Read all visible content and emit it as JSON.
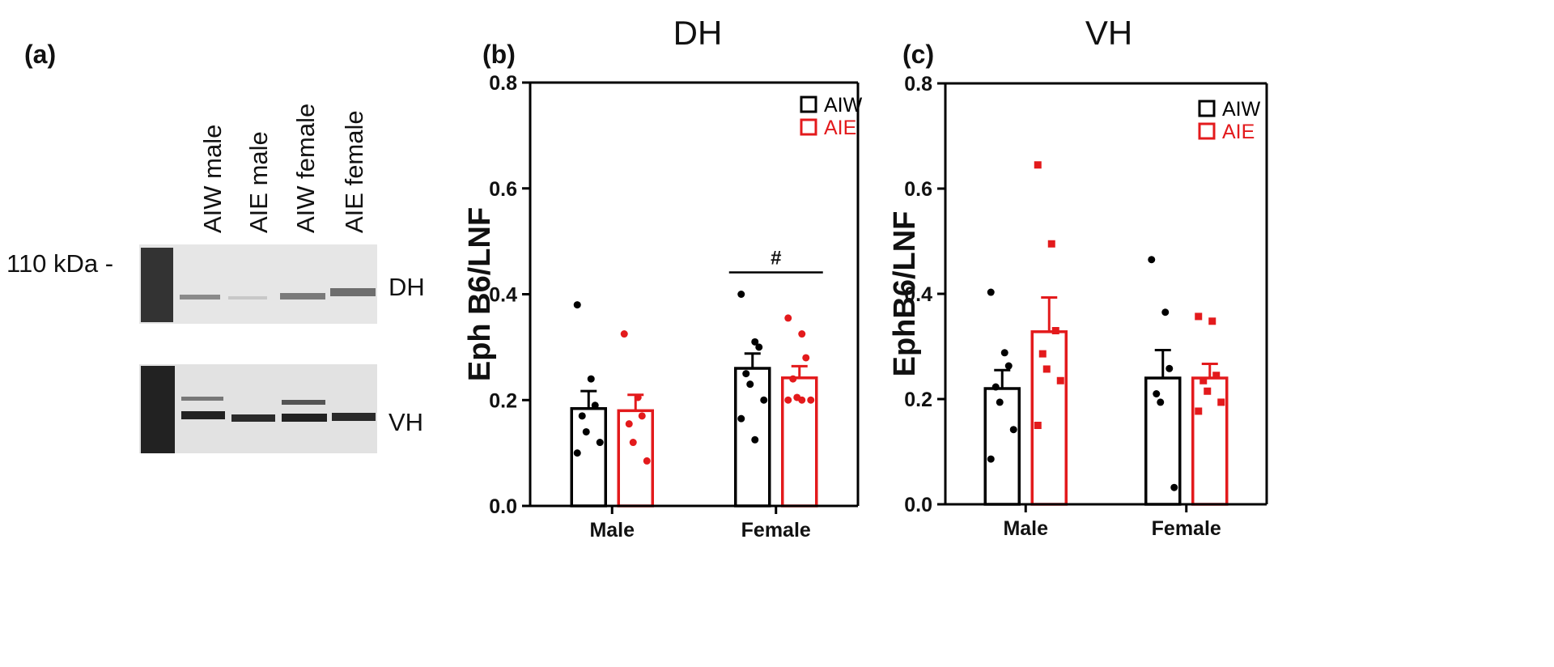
{
  "blot": {
    "panel_label": "(a)",
    "lanes": [
      "AIW male",
      "AIE male",
      "AIW female",
      "AIE female"
    ],
    "marker": "110 kDa -",
    "rows": [
      "DH",
      "VH"
    ]
  },
  "chart_data": [
    {
      "type": "bar",
      "panel_label": "(b)",
      "title": "DH",
      "y_label": "Eph B6/LNF",
      "categories": [
        "Male",
        "Female"
      ],
      "series": [
        {
          "name": "AIW",
          "color": "#000000",
          "marker": "circle",
          "values": [
            0.184,
            0.26
          ],
          "errors": [
            0.033,
            0.028
          ],
          "points": [
            [
              0.38,
              0.24,
              0.19,
              0.17,
              0.14,
              0.12,
              0.1
            ],
            [
              0.4,
              0.31,
              0.3,
              0.25,
              0.23,
              0.2,
              0.165,
              0.125
            ]
          ]
        },
        {
          "name": "AIE",
          "color": "#e31a1c",
          "marker": "circle",
          "values": [
            0.18,
            0.242
          ],
          "errors": [
            0.03,
            0.022
          ],
          "points": [
            [
              0.325,
              0.205,
              0.17,
              0.155,
              0.12,
              0.085
            ],
            [
              0.355,
              0.325,
              0.28,
              0.24,
              0.205,
              0.2,
              0.2,
              0.2
            ]
          ]
        }
      ],
      "annotation": {
        "text": "#",
        "category": 1
      },
      "ylim": [
        0,
        0.8
      ],
      "yticks": [
        {
          "value": 0,
          "label": "0.0"
        },
        {
          "value": 0.2,
          "label": "0.2"
        },
        {
          "value": 0.4,
          "label": "0.4"
        },
        {
          "value": 0.6,
          "label": "0.6"
        },
        {
          "value": 0.8,
          "label": "0.8"
        }
      ],
      "legend": "top-right"
    },
    {
      "type": "bar",
      "panel_label": "(c)",
      "title": "VH",
      "y_label": "EphB6/LNF",
      "categories": [
        "Male",
        "Female"
      ],
      "series": [
        {
          "name": "AIW",
          "color": "#000000",
          "marker": "circle",
          "values": [
            0.22,
            0.24
          ],
          "errors": [
            0.035,
            0.053
          ],
          "points": [
            [
              0.403,
              0.288,
              0.263,
              0.223,
              0.194,
              0.142,
              0.086
            ],
            [
              0.465,
              0.365,
              0.258,
              0.21,
              0.194,
              0.032
            ]
          ]
        },
        {
          "name": "AIE",
          "color": "#e31a1c",
          "marker": "square",
          "values": [
            0.328,
            0.24
          ],
          "errors": [
            0.065,
            0.027
          ],
          "points": [
            [
              0.645,
              0.495,
              0.33,
              0.286,
              0.257,
              0.235,
              0.15
            ],
            [
              0.357,
              0.348,
              0.245,
              0.235,
              0.215,
              0.194,
              0.177
            ]
          ]
        }
      ],
      "ylim": [
        0,
        0.8
      ],
      "yticks": [
        {
          "value": 0,
          "label": "0.0"
        },
        {
          "value": 0.2,
          "label": "0.2"
        },
        {
          "value": 0.4,
          "label": "0.4"
        },
        {
          "value": 0.6,
          "label": "0.6"
        },
        {
          "value": 0.8,
          "label": "0.8"
        }
      ],
      "legend": "top-right"
    }
  ]
}
